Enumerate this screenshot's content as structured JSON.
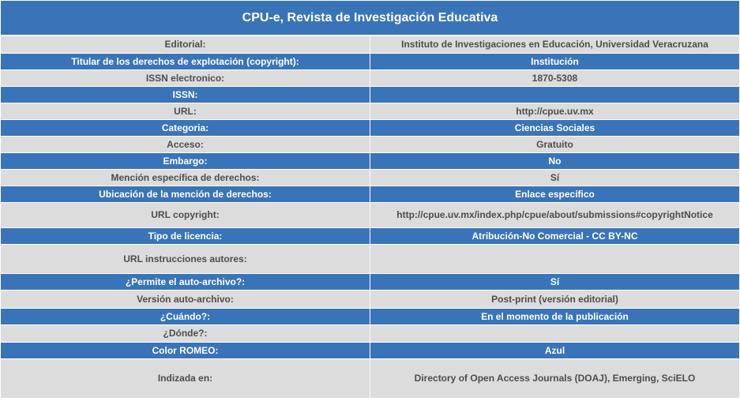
{
  "title": "CPU-e, Revista de Investigación Educativa",
  "rows": [
    {
      "label": "Editorial:",
      "value": "Instituto de Investigaciones en Educación, Universidad Veracruzana"
    },
    {
      "label": "Titular de los derechos de explotación (copyright):",
      "value": "Institución"
    },
    {
      "label": "ISSN electronico:",
      "value": "1870-5308"
    },
    {
      "label": "ISSN:",
      "value": ""
    },
    {
      "label": "URL:",
      "value": "http://cpue.uv.mx"
    },
    {
      "label": "Categoria:",
      "value": "Ciencias Sociales"
    },
    {
      "label": "Acceso:",
      "value": "Gratuito"
    },
    {
      "label": "Embargo:",
      "value": "No"
    },
    {
      "label": "Mención específica de derechos:",
      "value": "Sí"
    },
    {
      "label": "Ubicación de la mención de derechos:",
      "value": "Enlace específico"
    },
    {
      "label": "URL copyright:",
      "value": "http://cpue.uv.mx/index.php/cpue/about/submissions#copyrightNotice"
    },
    {
      "label": "Tipo de licencia:",
      "value": "Atribución-No Comercial - CC BY-NC"
    },
    {
      "label": "URL instrucciones autores:",
      "value": ""
    },
    {
      "label": "¿Permite el auto-archivo?:",
      "value": "Sí"
    },
    {
      "label": "Versión auto-archivo:",
      "value": "Post-print (versión editorial)"
    },
    {
      "label": "¿Cuándo?:",
      "value": "En el momento de la publicación"
    },
    {
      "label": "¿Dónde?:",
      "value": ""
    },
    {
      "label": "Color ROMEO:",
      "value": "Azul"
    },
    {
      "label": "Indizada en:",
      "value": "Directory of Open Access Journals (DOAJ), Emerging, SciELO"
    }
  ],
  "colors": {
    "header_blue": "#3a74b8",
    "row_gray": "#dcdcdc",
    "text_gray": "#4d4d4d"
  }
}
